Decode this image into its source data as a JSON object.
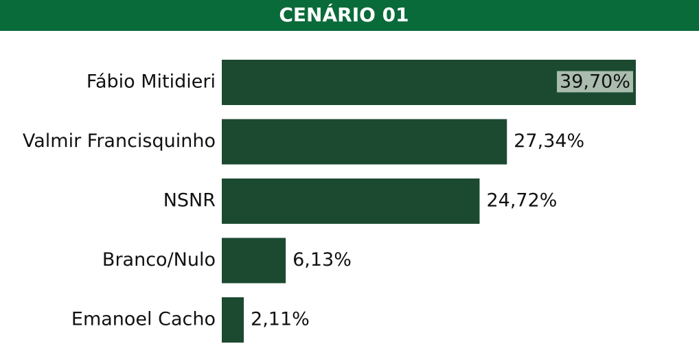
{
  "chart_data": {
    "type": "bar",
    "orientation": "horizontal",
    "title": "CENÁRIO 01",
    "categories": [
      "Fábio Mitidieri",
      "Valmir Francisquinho",
      "NSNR",
      "Branco/Nulo",
      "Emanoel Cacho"
    ],
    "values": [
      39.7,
      27.34,
      24.72,
      6.13,
      2.11
    ],
    "value_labels": [
      "39,70%",
      "27,34%",
      "24,72%",
      "6,13%",
      "2,11%"
    ],
    "color": "#1b4a31"
  }
}
